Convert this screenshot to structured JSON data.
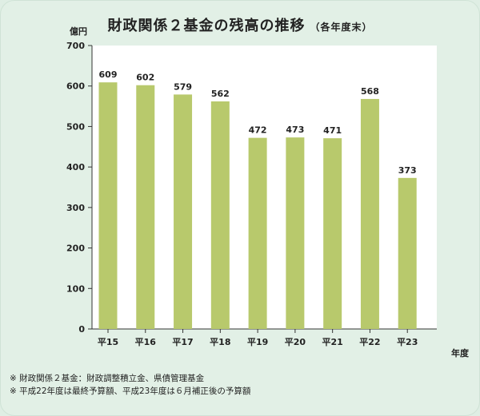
{
  "chart_data": {
    "type": "bar",
    "title": "財政関係２基金の残高の推移",
    "subtitle": "（各年度末）",
    "ylabel": "億円",
    "xlabel": "年度",
    "categories": [
      "平15",
      "平16",
      "平17",
      "平18",
      "平19",
      "平20",
      "平21",
      "平22",
      "平23"
    ],
    "values": [
      609,
      602,
      579,
      562,
      472,
      473,
      471,
      568,
      373
    ],
    "ylim": [
      0,
      700
    ],
    "yticks": [
      0,
      100,
      200,
      300,
      400,
      500,
      600,
      700
    ],
    "bar_color": "#b8c96c",
    "grid": false
  },
  "notes": [
    "※ 財政関係２基金：財政調整積立金、県債管理基金",
    "※ 平成22年度は最終予算額、平成23年度は６月補正後の予算額"
  ]
}
